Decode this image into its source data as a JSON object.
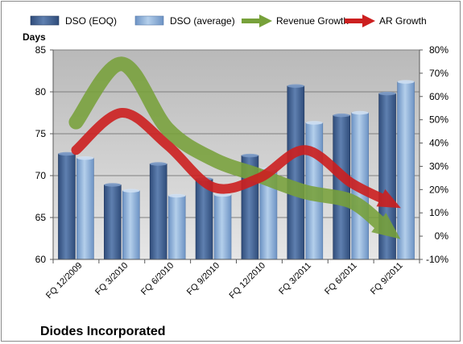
{
  "chart_data": {
    "type": "bar",
    "title": "",
    "footer_title": "Diodes Incorporated",
    "ylabel_left": "Days",
    "ylim_left": [
      60,
      85
    ],
    "yticks_left": [
      60,
      65,
      70,
      75,
      80,
      85
    ],
    "ylim_right": [
      -10,
      80
    ],
    "yticks_right": [
      -10,
      0,
      10,
      20,
      30,
      40,
      50,
      60,
      70,
      80
    ],
    "yticks_right_labels": [
      "-10%",
      "0%",
      "10%",
      "20%",
      "30%",
      "40%",
      "50%",
      "60%",
      "70%",
      "80%"
    ],
    "categories": [
      "FQ 12/2009",
      "FQ 3/2010",
      "FQ 6/2010",
      "FQ 9/2010",
      "FQ 12/2010",
      "FQ 3/2011",
      "FQ 6/2011",
      "FQ 9/2011"
    ],
    "series": [
      {
        "name": "DSO (EOQ)",
        "kind": "bar",
        "axis": "left",
        "color": "#4f6f9e",
        "values": [
          72.6,
          68.9,
          71.4,
          69.6,
          72.4,
          80.7,
          77.2,
          79.8
        ]
      },
      {
        "name": "DSO (average)",
        "kind": "bar",
        "axis": "left",
        "color": "#8eb1d8",
        "values": [
          72.1,
          68.2,
          67.6,
          67.7,
          70.8,
          76.3,
          77.5,
          81.2
        ]
      },
      {
        "name": "Revenue Growth",
        "kind": "arrow",
        "axis": "right",
        "color": "#77a13a",
        "values": [
          49,
          74,
          46,
          33,
          26,
          19,
          15,
          0
        ]
      },
      {
        "name": "AR Growth",
        "kind": "arrow",
        "axis": "right",
        "color": "#cc1f1f",
        "values": [
          37,
          53,
          39,
          21,
          25,
          37,
          23,
          13
        ]
      }
    ],
    "grid": true,
    "legend_position": "top"
  }
}
